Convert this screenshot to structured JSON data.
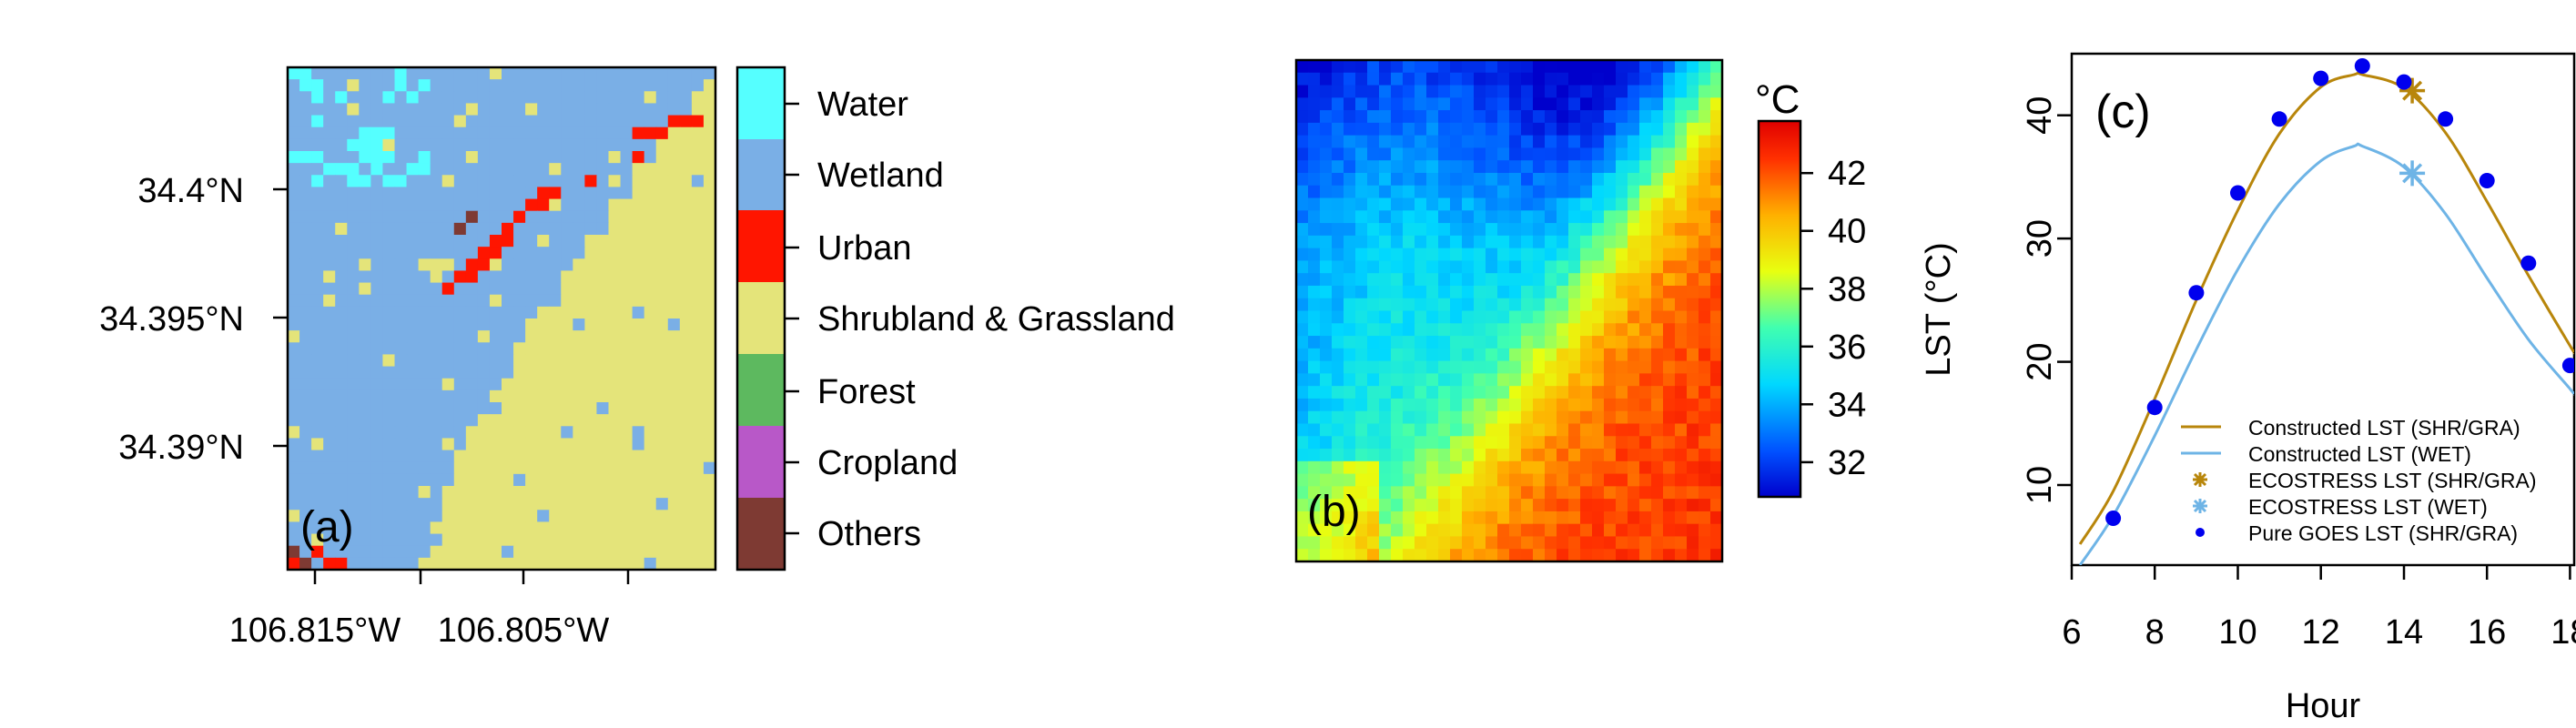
{
  "chart_data": [
    {
      "panel": "a",
      "type": "heatmap",
      "label": "(a)",
      "x_tick_labels": [
        "106.815°W",
        "106.805°W"
      ],
      "y_tick_labels": [
        "34.4°N",
        "34.395°N",
        "34.39°N"
      ],
      "legend": {
        "classes": [
          {
            "name": "Water",
            "color": "#55FFFF"
          },
          {
            "name": "Wetland",
            "color": "#7AAFE6"
          },
          {
            "name": "Urban",
            "color": "#FF1500"
          },
          {
            "name": "Shrubland & Grassland",
            "color": "#E4E47A"
          },
          {
            "name": "Forest",
            "color": "#5DB95F"
          },
          {
            "name": "Cropland",
            "color": "#B858C8"
          },
          {
            "name": "Others",
            "color": "#7E3A33"
          }
        ]
      }
    },
    {
      "panel": "b",
      "type": "heatmap",
      "label": "(b)",
      "colorbar": {
        "unit": "°C",
        "ticks": [
          32,
          34,
          36,
          38,
          40,
          42
        ],
        "range": [
          30.8,
          43.8
        ]
      }
    },
    {
      "panel": "c",
      "type": "line",
      "label": "(c)",
      "xlabel": "Hour",
      "ylabel": "LST (°C)",
      "xlim": [
        6,
        18.1
      ],
      "ylim": [
        3.5,
        45
      ],
      "xticks": [
        6,
        8,
        10,
        12,
        14,
        16,
        18
      ],
      "yticks": [
        10,
        20,
        30,
        40
      ],
      "legend_position": "bottom-right",
      "series": [
        {
          "name": "Constructed LST (SHR/GRA)",
          "kind": "line",
          "color": "#B8860B",
          "x": [
            6.2,
            7,
            8,
            9,
            10,
            11,
            12,
            12.8,
            13,
            14,
            15,
            16,
            17,
            18,
            18.1
          ],
          "y": [
            5.2,
            9.5,
            17.0,
            25.0,
            32.3,
            38.5,
            42.3,
            43.3,
            43.3,
            42.2,
            38.6,
            33.0,
            27.0,
            21.3,
            20.8
          ]
        },
        {
          "name": "Constructed LST (WET)",
          "kind": "line",
          "color": "#6EB4E6",
          "x": [
            6.2,
            7,
            8,
            9,
            10,
            11,
            12,
            12.8,
            13,
            14,
            15,
            16,
            17,
            18,
            18.1
          ],
          "y": [
            3.5,
            7.5,
            14.0,
            21.0,
            27.5,
            32.8,
            36.3,
            37.5,
            37.5,
            35.8,
            32.0,
            26.8,
            21.8,
            17.8,
            17.4
          ]
        },
        {
          "name": "ECOSTRESS LST (SHR/GRA)",
          "kind": "asterisk",
          "color": "#B8860B",
          "x": [
            14.2
          ],
          "y": [
            42.0
          ]
        },
        {
          "name": "ECOSTRESS LST (WET)",
          "kind": "asterisk",
          "color": "#6EB4E6",
          "x": [
            14.2
          ],
          "y": [
            35.3
          ]
        },
        {
          "name": "Pure GOES LST (SHR/GRA)",
          "kind": "dot",
          "color": "#0000EE",
          "x": [
            7,
            8,
            9,
            10,
            11,
            12,
            13,
            14,
            15,
            16,
            17,
            18
          ],
          "y": [
            7.3,
            16.3,
            25.6,
            33.7,
            39.7,
            43.0,
            44.0,
            42.7,
            39.7,
            34.7,
            28.0,
            19.7
          ]
        }
      ]
    }
  ]
}
